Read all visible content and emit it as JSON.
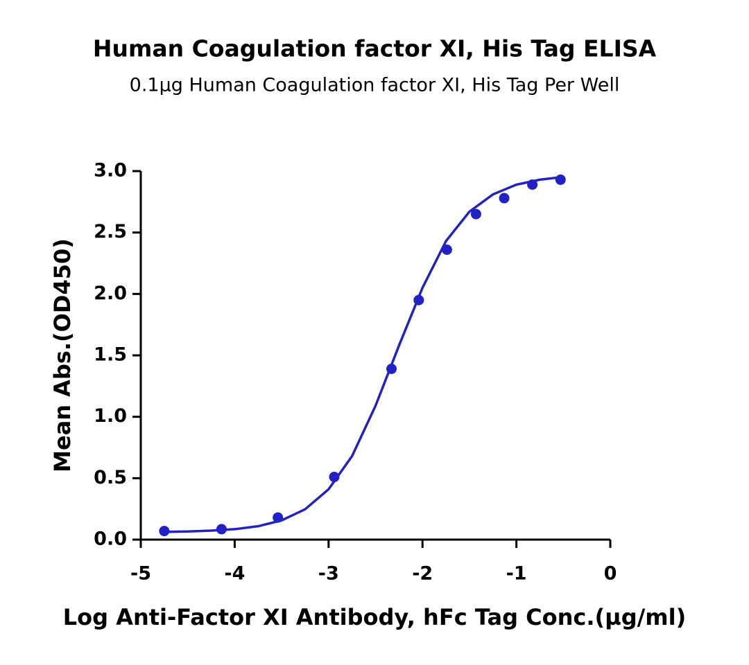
{
  "chart_data": {
    "type": "scatter",
    "title": "Human Coagulation factor XI, His Tag ELISA",
    "subtitle": "0.1µg Human Coagulation factor XI, His Tag Per Well",
    "x_label": "Log Anti-Factor XI Antibody, hFc Tag Conc.(µg/ml)",
    "y_label": "Mean Abs.(OD450)",
    "xlim": [
      -5,
      0
    ],
    "xticks": [
      -5,
      -4,
      -3,
      -2,
      -1,
      0
    ],
    "ylim": [
      0,
      3.0
    ],
    "yticks": [
      {
        "value": 0,
        "label": "0.0"
      },
      {
        "value": 0.5,
        "label": "0.5"
      },
      {
        "value": 1,
        "label": "1.0"
      },
      {
        "value": 1.5,
        "label": "1.5"
      },
      {
        "value": 2,
        "label": "2.0"
      },
      {
        "value": 2.5,
        "label": "2.5"
      },
      {
        "value": 3,
        "label": "3.0"
      }
    ],
    "color": "#2121c4",
    "x": [
      -4.75,
      -4.14,
      -3.54,
      -2.94,
      -2.33,
      -2.04,
      -1.74,
      -1.43,
      -1.13,
      -0.83,
      -0.53
    ],
    "values": [
      0.07,
      0.085,
      0.18,
      0.51,
      1.39,
      1.95,
      2.36,
      2.65,
      2.78,
      2.89,
      2.93
    ],
    "fit": {
      "x": [
        -4.75,
        -4.5,
        -4.25,
        -4.0,
        -3.75,
        -3.5,
        -3.25,
        -3.0,
        -2.75,
        -2.5,
        -2.25,
        -2.0,
        -1.75,
        -1.5,
        -1.25,
        -1.0,
        -0.75,
        -0.53
      ],
      "values": [
        0.063,
        0.066,
        0.073,
        0.085,
        0.109,
        0.157,
        0.247,
        0.41,
        0.68,
        1.09,
        1.58,
        2.05,
        2.43,
        2.67,
        2.81,
        2.89,
        2.93,
        2.95
      ]
    }
  }
}
